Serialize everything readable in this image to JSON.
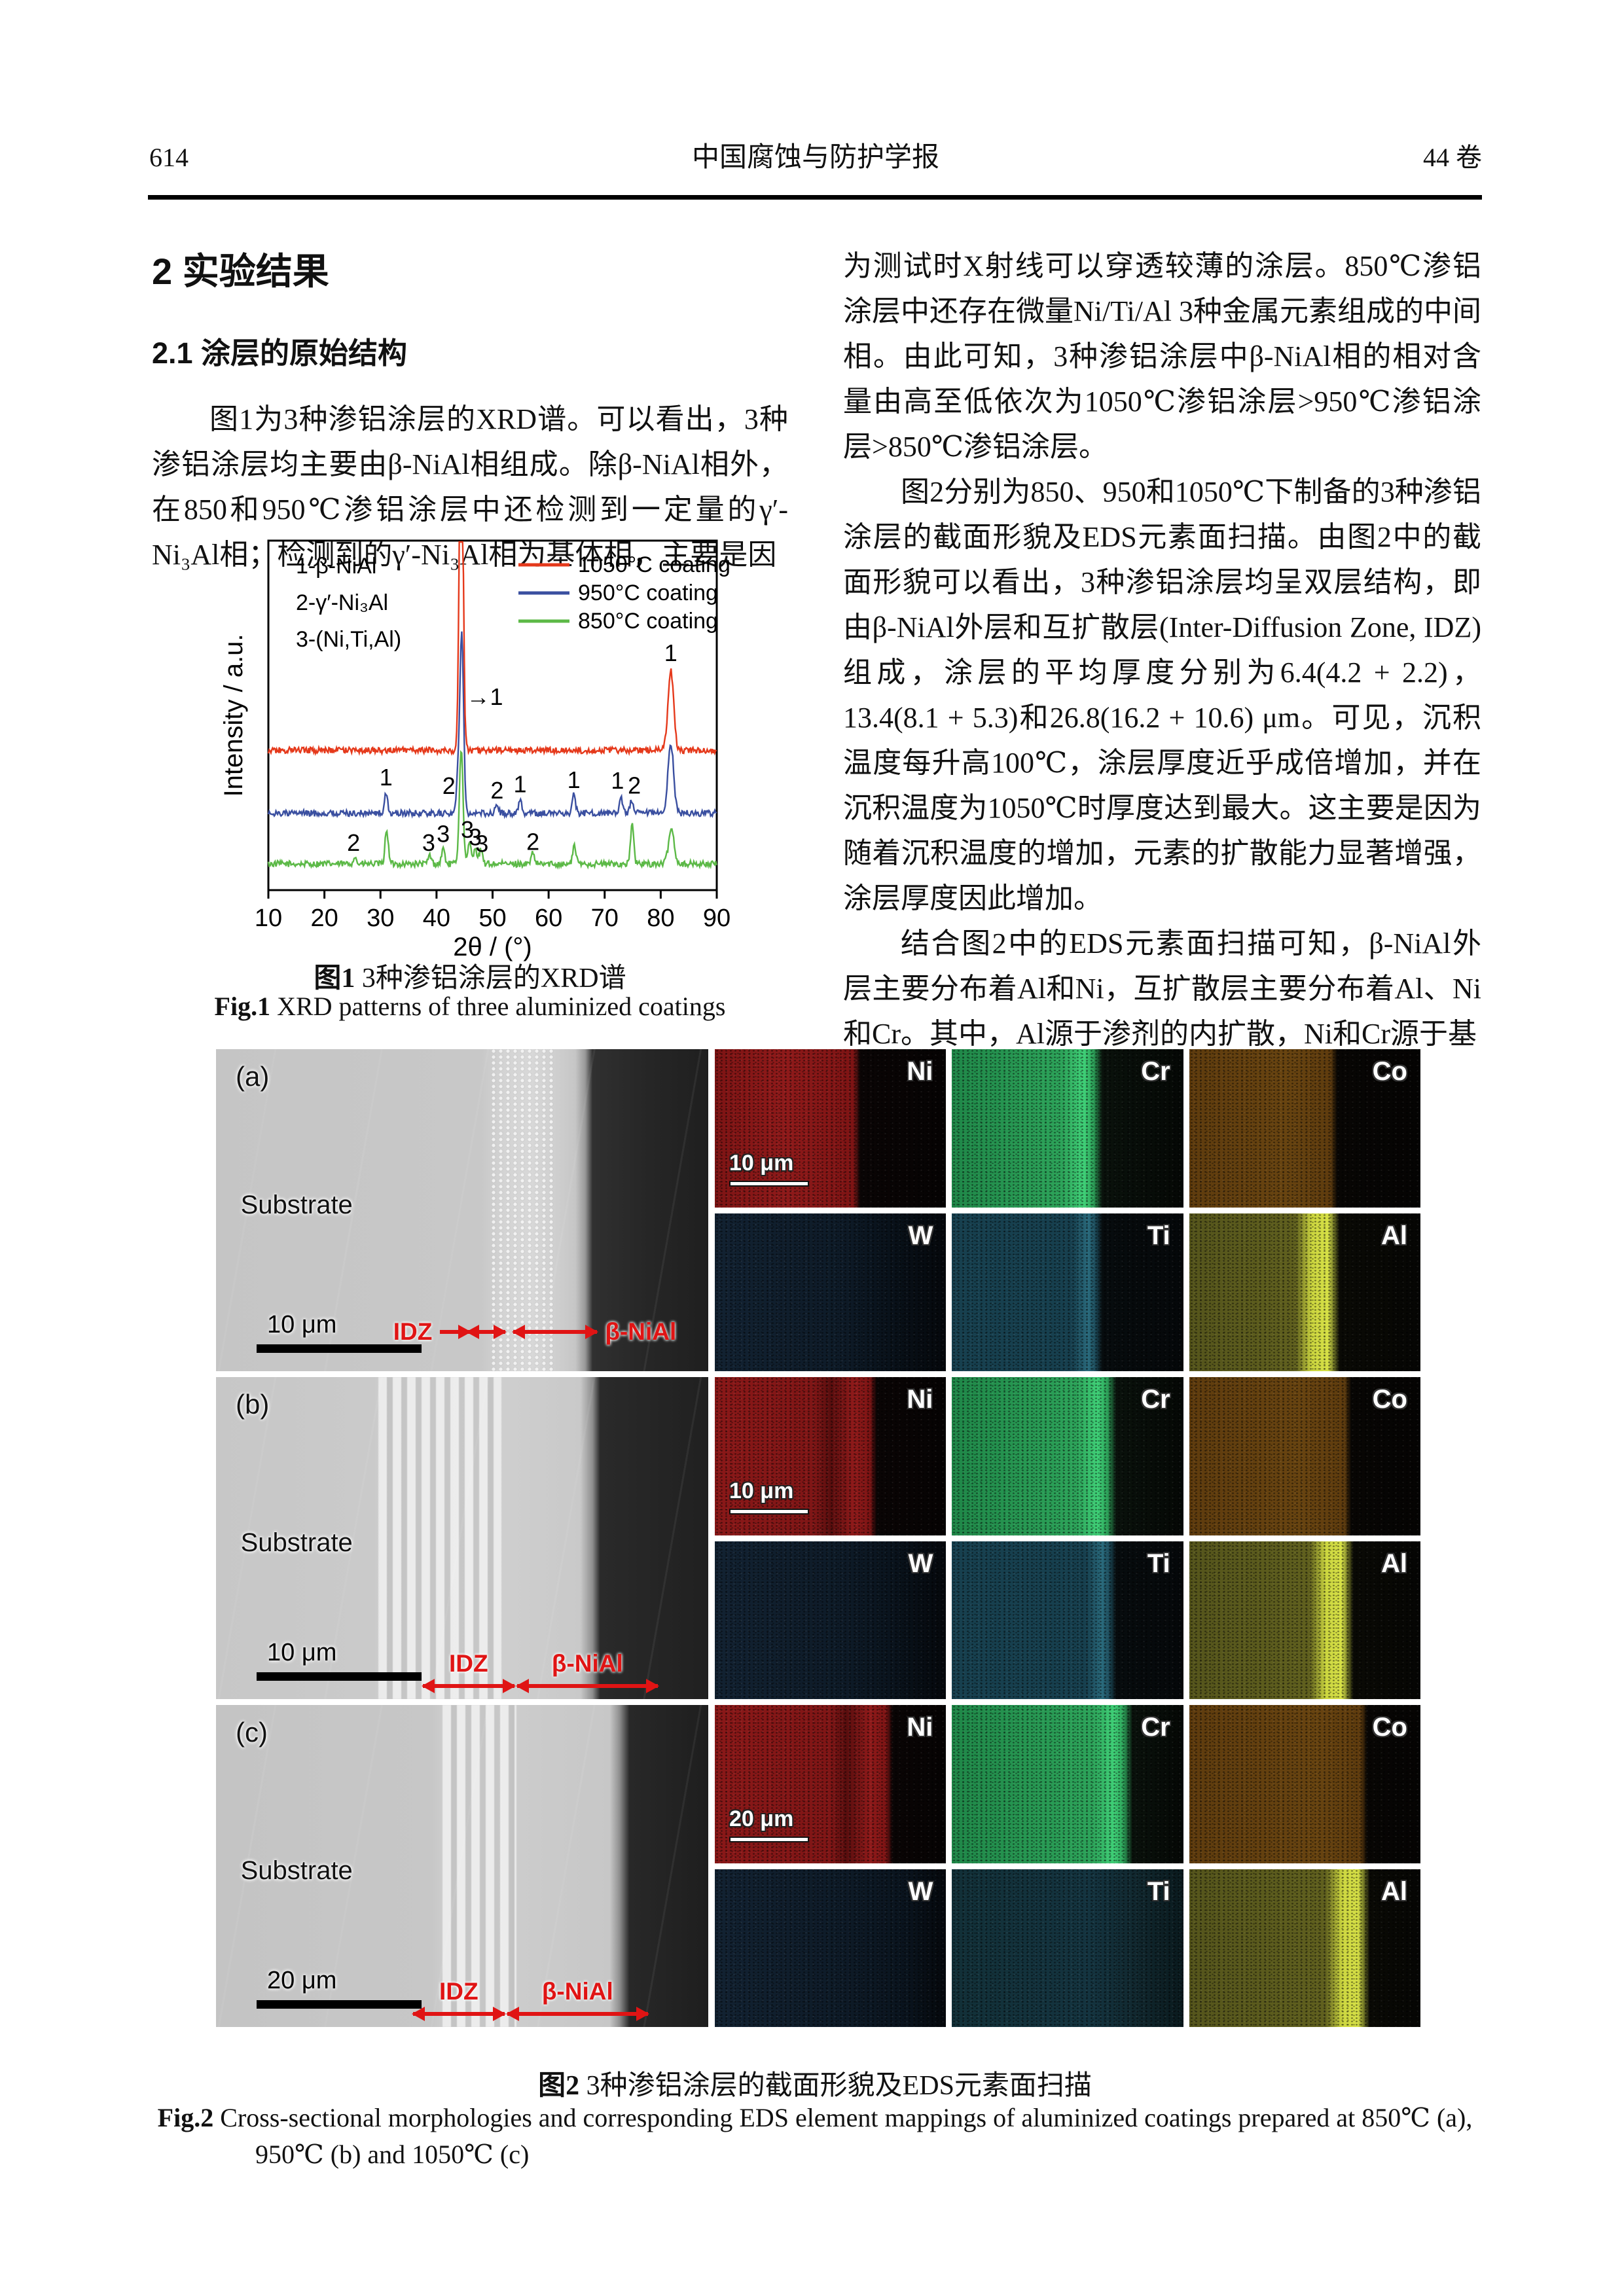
{
  "header": {
    "page_number": "614",
    "journal_title": "中国腐蚀与防护学报",
    "volume_label": "44 卷"
  },
  "left_column": {
    "section_heading": "2  实验结果",
    "subsection_heading": "2.1  涂层的原始结构",
    "paragraph": "图1为3种渗铝涂层的XRD谱。可以看出，3种渗铝涂层均主要由β-NiAl相组成。除β-NiAl相外，在850和950℃渗铝涂层中还检测到一定量的γ′-Ni₃Al相；检测到的γ′-Ni₃Al相为基体相，主要是因"
  },
  "right_column": {
    "paragraphs": [
      "为测试时X射线可以穿透较薄的涂层。850℃渗铝涂层中还存在微量Ni/Ti/Al 3种金属元素组成的中间相。由此可知，3种渗铝涂层中β-NiAl相的相对含量由高至低依次为1050℃渗铝涂层>950℃渗铝涂层>850℃渗铝涂层。",
      "图2分别为850、950和1050℃下制备的3种渗铝涂层的截面形貌及EDS元素面扫描。由图2中的截面形貌可以看出，3种渗铝涂层均呈双层结构，即由β-NiAl外层和互扩散层(Inter-Diffusion Zone, IDZ)组成，涂层的平均厚度分别为6.4(4.2 + 2.2)，13.4(8.1 + 5.3)和26.8(16.2 + 10.6) μm。可见，沉积温度每升高100℃，涂层厚度近乎成倍增加，并在沉积温度为1050℃时厚度达到最大。这主要是因为随着沉积温度的增加，元素的扩散能力显著增强，涂层厚度因此增加。",
      "结合图2中的EDS元素面扫描可知，β-NiAl外层主要分布着Al和Ni，互扩散层主要分布着Al、Ni和Cr。其中，Al源于渗剂的内扩散，Ni和Cr源于基"
    ]
  },
  "figure1": {
    "label_cn": "图1",
    "caption_cn": "3种渗铝涂层的XRD谱",
    "label_en": "Fig.1",
    "caption_en": "XRD patterns of three aluminized coatings"
  },
  "chart_data": {
    "type": "line",
    "title": "",
    "xlabel": "2θ / (°)",
    "ylabel": "Intensity / a.u.",
    "xlim": [
      10,
      90
    ],
    "x_ticks": [
      10,
      20,
      30,
      40,
      50,
      60,
      70,
      80,
      90
    ],
    "grid": false,
    "legend_position": "top-right",
    "phase_key": [
      "1-β-NiAl",
      "2-γ′-Ni₃Al",
      "3-(Ni,Ti,Al)"
    ],
    "series": [
      {
        "name": "1050°C coating",
        "color": "#e5391b",
        "baseline": 0.4,
        "peaks": [
          [
            44.4,
            1.05
          ],
          [
            81.8,
            0.23
          ]
        ]
      },
      {
        "name": "950°C coating",
        "color": "#3a4fa0",
        "baseline": 0.22,
        "peaks": [
          [
            31.0,
            0.055
          ],
          [
            43.8,
            0.09
          ],
          [
            44.5,
            0.52
          ],
          [
            50.8,
            0.025
          ],
          [
            54.9,
            0.04
          ],
          [
            64.5,
            0.055
          ],
          [
            72.9,
            0.05
          ],
          [
            74.8,
            0.035
          ],
          [
            81.8,
            0.2
          ]
        ]
      },
      {
        "name": "850°C coating",
        "color": "#5cb947",
        "baseline": 0.075,
        "peaks": [
          [
            25.4,
            0.02
          ],
          [
            31.1,
            0.1
          ],
          [
            38.8,
            0.025
          ],
          [
            41.2,
            0.045
          ],
          [
            44.4,
            0.33
          ],
          [
            45.9,
            0.06
          ],
          [
            46.9,
            0.05
          ],
          [
            47.9,
            0.04
          ],
          [
            57.2,
            0.03
          ],
          [
            64.6,
            0.055
          ],
          [
            74.9,
            0.115
          ],
          [
            81.9,
            0.1
          ]
        ]
      }
    ],
    "peak_annotations": [
      {
        "text": "1",
        "x": 81.8,
        "y": 0.655
      },
      {
        "text": "→1",
        "x": 48.6,
        "y": 0.53
      },
      {
        "text": "1",
        "x": 31.0,
        "y": 0.3
      },
      {
        "text": "2",
        "x": 42.2,
        "y": 0.275
      },
      {
        "text": "2",
        "x": 50.8,
        "y": 0.262
      },
      {
        "text": "1",
        "x": 54.9,
        "y": 0.28
      },
      {
        "text": "1",
        "x": 64.5,
        "y": 0.292
      },
      {
        "text": "1",
        "x": 72.3,
        "y": 0.29
      },
      {
        "text": "2",
        "x": 75.3,
        "y": 0.276
      },
      {
        "text": "2",
        "x": 25.2,
        "y": 0.112
      },
      {
        "text": "3",
        "x": 38.6,
        "y": 0.112
      },
      {
        "text": "3",
        "x": 41.2,
        "y": 0.138
      },
      {
        "text": "3",
        "x": 45.5,
        "y": 0.15
      },
      {
        "text": "3",
        "x": 46.9,
        "y": 0.128
      },
      {
        "text": "3",
        "x": 48.1,
        "y": 0.11
      },
      {
        "text": "2",
        "x": 57.2,
        "y": 0.115
      }
    ]
  },
  "figure2": {
    "rows": [
      {
        "panel_label": "(a)",
        "substrate_label": "Substrate",
        "sem_scale_bar": "10 μm",
        "idz_label": "IDZ",
        "outer_label": "β-NiAl",
        "eds_scale_bar": "10 μm",
        "elements": [
          "Ni",
          "Cr",
          "Co",
          "W",
          "Ti",
          "Al"
        ]
      },
      {
        "panel_label": "(b)",
        "substrate_label": "Substrate",
        "sem_scale_bar": "10 μm",
        "idz_label": "IDZ",
        "outer_label": "β-NiAl",
        "eds_scale_bar": "10 μm",
        "elements": [
          "Ni",
          "Cr",
          "Co",
          "W",
          "Ti",
          "Al"
        ]
      },
      {
        "panel_label": "(c)",
        "substrate_label": "Substrate",
        "sem_scale_bar": "20 μm",
        "idz_label": "IDZ",
        "outer_label": "β-NiAl",
        "eds_scale_bar": "20 μm",
        "elements": [
          "Ni",
          "Cr",
          "Co",
          "W",
          "Ti",
          "Al"
        ]
      }
    ],
    "element_colors": {
      "Ni": "#8a1818",
      "Cr": "#2da45a",
      "Co": "#5f3c0e",
      "W": "#0e1b28",
      "Ti": "#17404f",
      "Al": "#6b6b20"
    },
    "label_cn": "图2",
    "caption_cn": "3种渗铝涂层的截面形貌及EDS元素面扫描",
    "label_en": "Fig.2",
    "caption_en": "Cross-sectional morphologies and corresponding EDS element mappings of aluminized coatings prepared at 850℃ (a),",
    "caption_en2": "950℃ (b) and 1050℃ (c)"
  }
}
